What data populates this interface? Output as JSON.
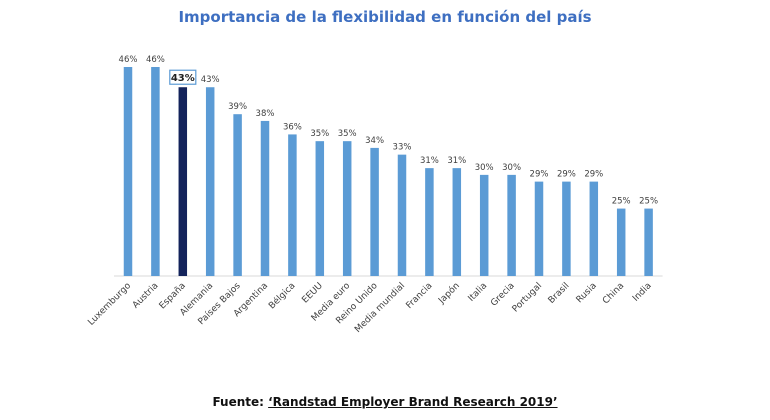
{
  "chart_data": {
    "type": "bar",
    "title": "Importancia de la flexibilidad en función del país",
    "xlabel": "",
    "ylabel": "",
    "categories": [
      "Luxemburgo",
      "Austria",
      "España",
      "Alemania",
      "Países Bajos",
      "Argentina",
      "Bélgica",
      "EEUU",
      "Media euro",
      "Reino Unido",
      "Media mundial",
      "Francia",
      "Japón",
      "Italia",
      "Grecia",
      "Portugal",
      "Brasil",
      "Rusia",
      "China",
      "India"
    ],
    "values": [
      46,
      46,
      43,
      43,
      39,
      38,
      36,
      35,
      35,
      34,
      33,
      31,
      31,
      30,
      30,
      29,
      29,
      29,
      25,
      25
    ],
    "value_labels": [
      "46%",
      "46%",
      "43%",
      "43%",
      "39%",
      "38%",
      "36%",
      "35%",
      "35%",
      "34%",
      "33%",
      "31%",
      "31%",
      "30%",
      "30%",
      "29%",
      "29%",
      "29%",
      "25%",
      "25%"
    ],
    "highlight": "España",
    "ylim": [
      15,
      46
    ],
    "grid": false,
    "legend": "none",
    "colors": {
      "bar": "#5B9BD5",
      "highlight": "#13235B",
      "title": "#3E6FC1",
      "highlight_box": "#5B9BD5"
    }
  },
  "source": {
    "prefix": "Fuente: ",
    "name": "‘Randstad Employer Brand Research 2019’"
  }
}
